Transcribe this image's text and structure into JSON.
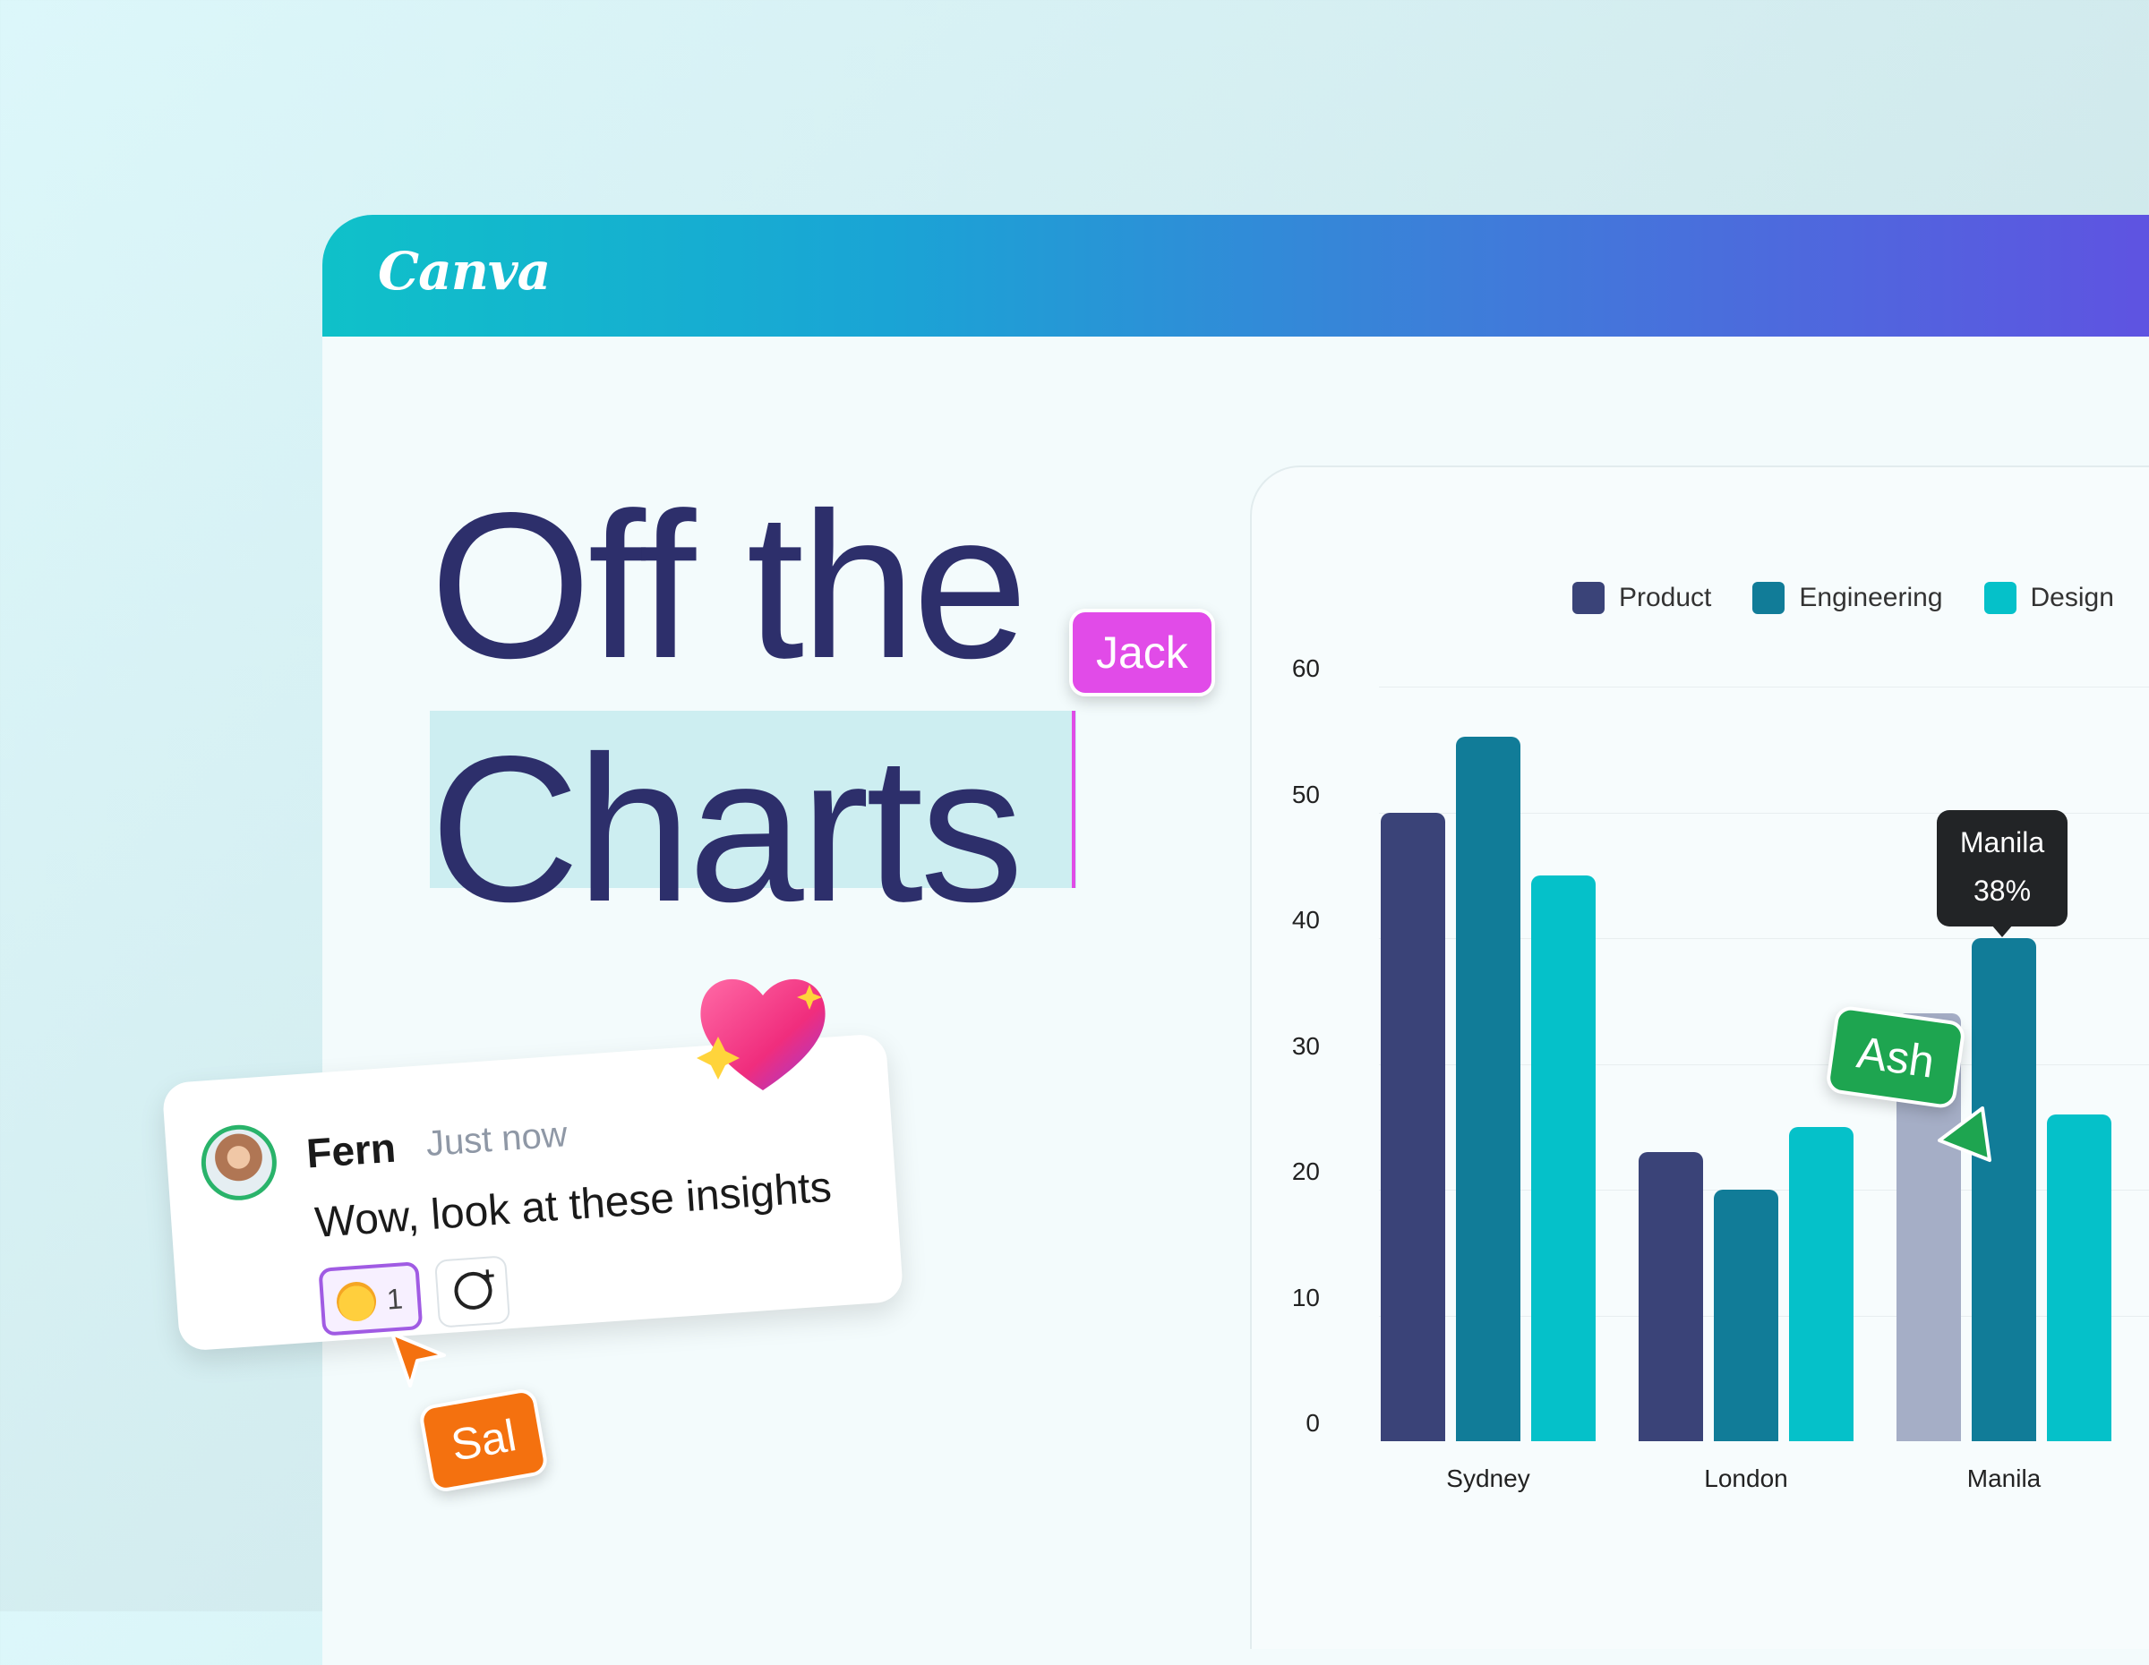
{
  "app": {
    "logo": "Canva"
  },
  "headline": {
    "line1": "Off the",
    "line2": "Charts"
  },
  "collaborators": {
    "jack": "Jack",
    "ash": "Ash",
    "sal": "Sal"
  },
  "comment": {
    "author": "Fern",
    "time": "Just now",
    "text": "Wow, look at these insights",
    "reaction_count": "1"
  },
  "tooltip": {
    "title": "Manila",
    "value": "38%"
  },
  "colors": {
    "product": "#3a4378",
    "engineering": "#117c98",
    "design": "#05c1c9",
    "manila_product_muted": "#a5aec6"
  },
  "chart_data": {
    "type": "bar",
    "categories": [
      "Sydney",
      "London",
      "Manila"
    ],
    "series": [
      {
        "name": "Product",
        "values": [
          50,
          23,
          34
        ]
      },
      {
        "name": "Engineering",
        "values": [
          56,
          20,
          40
        ]
      },
      {
        "name": "Design",
        "values": [
          45,
          25,
          26
        ]
      }
    ],
    "yticks": [
      "60",
      "50",
      "40",
      "30",
      "20",
      "10",
      "0"
    ],
    "ylim": [
      0,
      60
    ],
    "grid": true,
    "legend": "top-right"
  }
}
